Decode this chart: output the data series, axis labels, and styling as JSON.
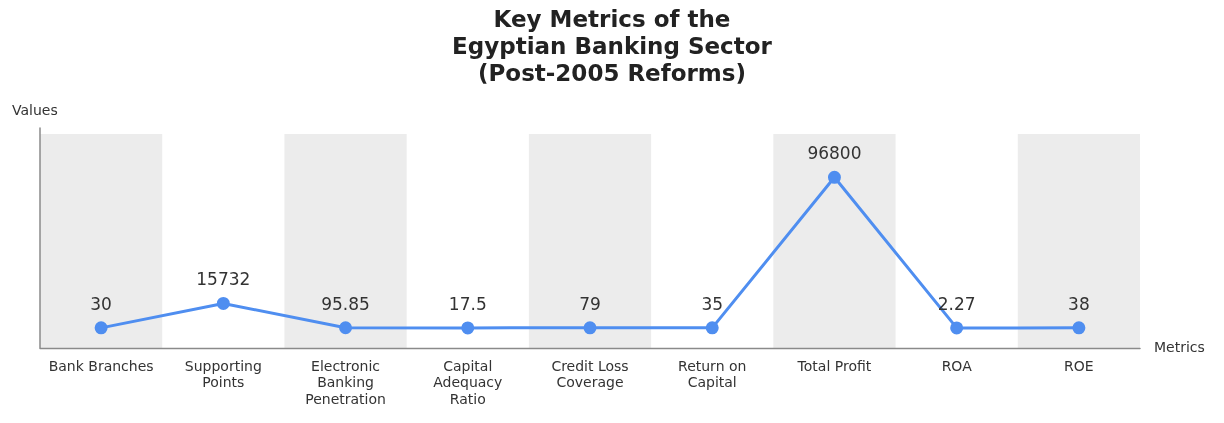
{
  "chart_data": {
    "type": "line",
    "title": "Key Metrics of the Egyptian Banking Sector (Post-2005 Reforms)",
    "xlabel": "Metrics",
    "ylabel": "Values",
    "categories": [
      "Bank Branches",
      "Supporting Points",
      "Electronic Banking Penetration",
      "Capital Adequacy Ratio",
      "Credit Loss Coverage",
      "Return on Capital",
      "Total Profit",
      "ROA",
      "ROE"
    ],
    "series": [
      {
        "color": "#4f8ef0",
        "values": [
          30,
          15732,
          95.85,
          17.5,
          79,
          35,
          96800,
          2.27,
          38
        ]
      }
    ],
    "ylim": [
      -13300,
      128500
    ],
    "tick_labels": "x",
    "data_labels": true,
    "grid": false,
    "legend": false,
    "marker": "circle",
    "line_style": "solid",
    "bands": [
      {
        "axis": "x",
        "from": "Bank Branches",
        "to": "Bank Branches",
        "color": "#ececec"
      },
      {
        "axis": "x",
        "from": "Electronic Banking Penetration",
        "to": "Electronic Banking Penetration",
        "color": "#ececec"
      },
      {
        "axis": "x",
        "from": "Credit Loss Coverage",
        "to": "Credit Loss Coverage",
        "color": "#ececec"
      },
      {
        "axis": "x",
        "from": "Total Profit",
        "to": "Total Profit",
        "color": "#ececec"
      },
      {
        "axis": "x",
        "from": "ROE",
        "to": "ROE",
        "color": "#ececec"
      }
    ]
  }
}
